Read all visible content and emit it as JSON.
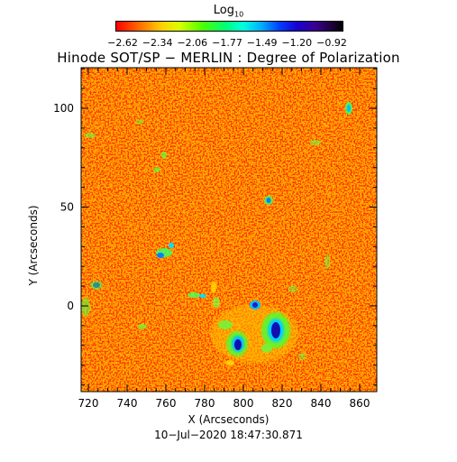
{
  "colorbar": {
    "label": "Log",
    "label_sub": "10",
    "ticks": [
      "−2.62",
      "−2.34",
      "−2.06",
      "−1.77",
      "−1.49",
      "−1.20",
      "−0.92"
    ],
    "colors": [
      "#ff0000",
      "#ffd000",
      "#50ff00",
      "#00ffe0",
      "#0040ff",
      "#3a0090",
      "#000000"
    ]
  },
  "title": "Hinode SOT/SP − MERLIN : Degree of Polarization",
  "x_axis": {
    "label": "X (Arcseconds)",
    "ticks": [
      "720",
      "740",
      "760",
      "780",
      "800",
      "820",
      "840",
      "860"
    ]
  },
  "y_axis": {
    "label": "Y (Arcseconds)",
    "ticks": [
      "0",
      "50",
      "100"
    ]
  },
  "timestamp": "10−Jul−2020 18:47:30.871",
  "image": {
    "description_colors": {
      "background": "#ff3a00",
      "speckle": "#ff9000",
      "strong": "#1818c8"
    }
  }
}
